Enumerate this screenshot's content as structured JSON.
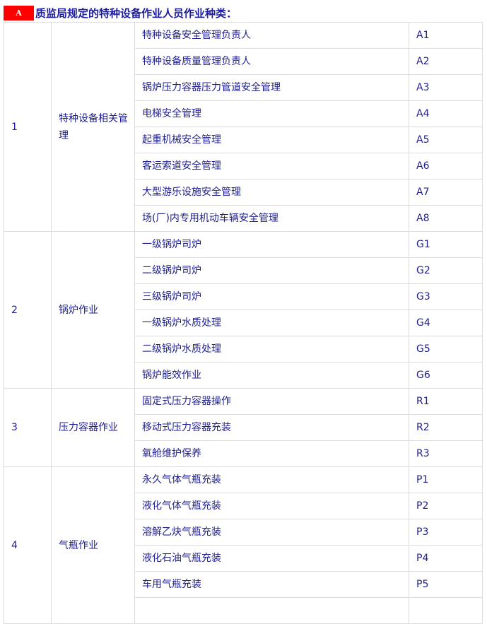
{
  "header": {
    "badge": "A",
    "title": "质监局规定的特种设备作业人员作业种类："
  },
  "groups": [
    {
      "no": "1",
      "category": "特种设备相关管理",
      "items": [
        [
          "特种设备安全管理负责人",
          "A1"
        ],
        [
          "特种设备质量管理负责人",
          "A2"
        ],
        [
          "锅炉压力容器压力管道安全管理",
          "A3"
        ],
        [
          "电梯安全管理",
          "A4"
        ],
        [
          "起重机械安全管理",
          "A5"
        ],
        [
          "客运索道安全管理",
          "A6"
        ],
        [
          "大型游乐设施安全管理",
          "A7"
        ],
        [
          "场(厂)内专用机动车辆安全管理",
          "A8"
        ]
      ]
    },
    {
      "no": "2",
      "category": "锅炉作业",
      "items": [
        [
          "一级锅炉司炉",
          "G1"
        ],
        [
          "二级锅炉司炉",
          "G2"
        ],
        [
          "三级锅炉司炉",
          "G3"
        ],
        [
          "一级锅炉水质处理",
          "G4"
        ],
        [
          "二级锅炉水质处理",
          "G5"
        ],
        [
          "锅炉能效作业",
          "G6"
        ]
      ]
    },
    {
      "no": "3",
      "category": "压力容器作业",
      "items": [
        [
          "固定式压力容器操作",
          "R1"
        ],
        [
          "移动式压力容器充装",
          "R2"
        ],
        [
          "氧舱维护保养",
          "R3"
        ]
      ]
    },
    {
      "no": "4",
      "category": "气瓶作业",
      "items": [
        [
          "永久气体气瓶充装",
          "P1"
        ],
        [
          "液化气体气瓶充装",
          "P2"
        ],
        [
          "溶解乙炔气瓶充装",
          "P3"
        ],
        [
          "液化石油气瓶充装",
          "P4"
        ],
        [
          "车用气瓶充装",
          "P5"
        ],
        [
          "",
          ""
        ]
      ]
    }
  ]
}
